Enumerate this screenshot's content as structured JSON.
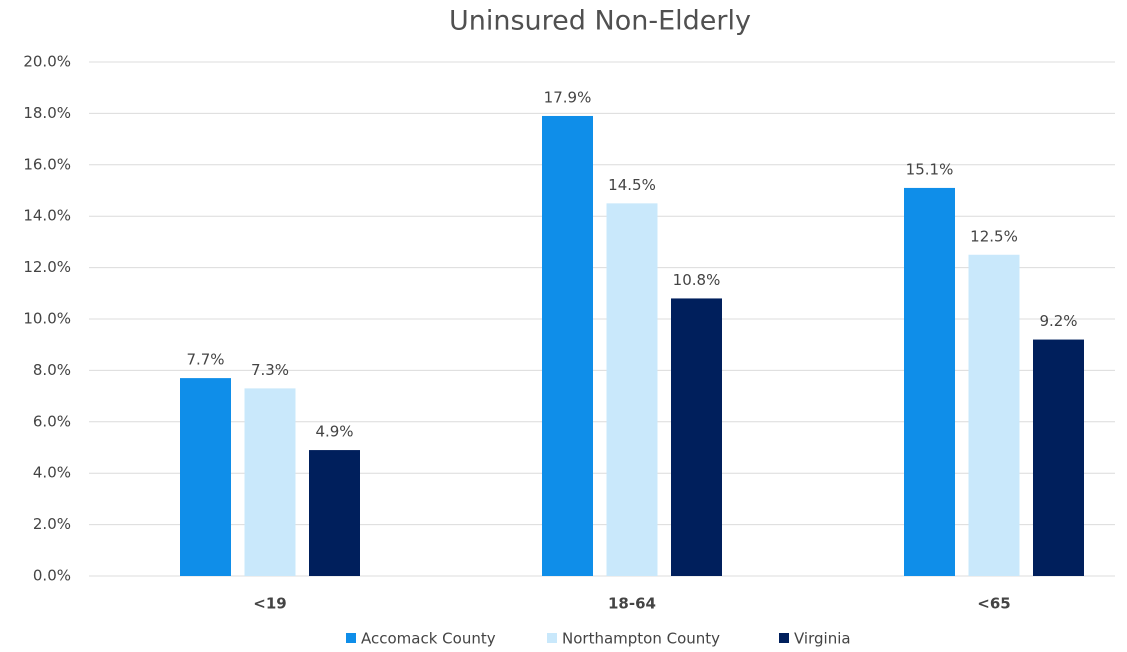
{
  "chart_data": {
    "type": "bar",
    "title": "Uninsured Non-Elderly",
    "categories": [
      "<19",
      "18-64",
      "<65"
    ],
    "series": [
      {
        "name": "Accomack County",
        "color": "#0f8ee9",
        "values": [
          7.7,
          17.9,
          15.1
        ],
        "value_labels": [
          "7.7%",
          "17.9%",
          "15.1%"
        ]
      },
      {
        "name": "Northampton County",
        "color": "#c9e8fb",
        "values": [
          7.3,
          14.5,
          12.5
        ],
        "value_labels": [
          "7.3%",
          "14.5%",
          "12.5%"
        ]
      },
      {
        "name": "Virginia",
        "color": "#001f5c",
        "values": [
          4.9,
          10.8,
          9.2
        ],
        "value_labels": [
          "4.9%",
          "10.8%",
          "9.2%"
        ]
      }
    ],
    "ylim": [
      0,
      20
    ],
    "yticks": [
      {
        "value": 0,
        "label": "0.0%"
      },
      {
        "value": 2,
        "label": "2.0%"
      },
      {
        "value": 4,
        "label": "4.0%"
      },
      {
        "value": 6,
        "label": "6.0%"
      },
      {
        "value": 8,
        "label": "8.0%"
      },
      {
        "value": 10,
        "label": "10.0%"
      },
      {
        "value": 12,
        "label": "12.0%"
      },
      {
        "value": 14,
        "label": "14.0%"
      },
      {
        "value": 16,
        "label": "16.0%"
      },
      {
        "value": 18,
        "label": "18.0%"
      },
      {
        "value": 20,
        "label": "20.0%"
      }
    ],
    "grid": true,
    "legend": "bottom"
  }
}
